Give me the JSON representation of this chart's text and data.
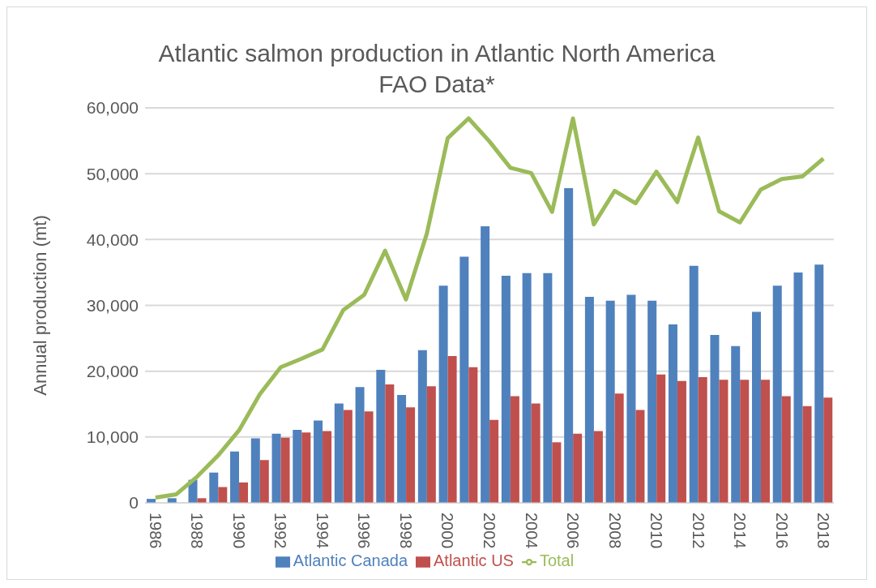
{
  "chart_data": {
    "type": "bar",
    "title": "Atlantic salmon production in Atlantic North America",
    "subtitle": "FAO Data*",
    "ylabel": "Annual production (mt)",
    "categories": [
      "1986",
      null,
      "1988",
      null,
      "1990",
      null,
      "1992",
      null,
      "1994",
      null,
      "1996",
      null,
      "1998",
      null,
      "2000",
      null,
      "2002",
      null,
      "2004",
      null,
      "2006",
      null,
      "2008",
      null,
      "2010",
      null,
      "2012",
      null,
      "2014",
      null,
      "2016",
      null,
      "2018"
    ],
    "series": [
      {
        "name": "Atlantic Canada",
        "color": "#4f81bd",
        "values": [
          600,
          700,
          3500,
          4600,
          7800,
          9800,
          10500,
          11100,
          12500,
          15100,
          17600,
          20200,
          16400,
          23200,
          33000,
          37400,
          42000,
          34500,
          34900,
          34900,
          47800,
          31300,
          30700,
          31600,
          30700,
          27100,
          36000,
          25500,
          23800,
          29000,
          33000,
          35000,
          36200
        ]
      },
      {
        "name": "Atlantic US",
        "color": "#c0504d",
        "values": [
          0,
          0,
          700,
          2400,
          3100,
          6500,
          9900,
          10700,
          10900,
          14100,
          13900,
          18000,
          14500,
          17700,
          22300,
          20600,
          12600,
          16200,
          15100,
          9200,
          10500,
          10900,
          16600,
          14100,
          19500,
          18500,
          19100,
          18700,
          18700,
          18700,
          16200,
          14700,
          16000
        ]
      },
      {
        "name": "Total",
        "type": "line",
        "color": "#9bbb59",
        "values": [
          800,
          1300,
          4000,
          7200,
          11000,
          16500,
          20600,
          21900,
          23300,
          29300,
          31600,
          38300,
          30900,
          40900,
          55400,
          58400,
          54900,
          50900,
          50100,
          44200,
          58400,
          42300,
          47400,
          45500,
          50300,
          45700,
          55500,
          44300,
          42600,
          47600,
          49200,
          49600,
          52300
        ]
      }
    ],
    "ylim": [
      0,
      60000
    ],
    "yticks": [
      {
        "value": 0,
        "label": "0"
      },
      {
        "value": 10000,
        "label": "10,000"
      },
      {
        "value": 20000,
        "label": "20,000"
      },
      {
        "value": 30000,
        "label": "30,000"
      },
      {
        "value": 40000,
        "label": "40,000"
      },
      {
        "value": 50000,
        "label": "50,000"
      },
      {
        "value": 60000,
        "label": "60,000"
      }
    ],
    "grid": "y",
    "legend": "bottom",
    "marker": "none"
  }
}
